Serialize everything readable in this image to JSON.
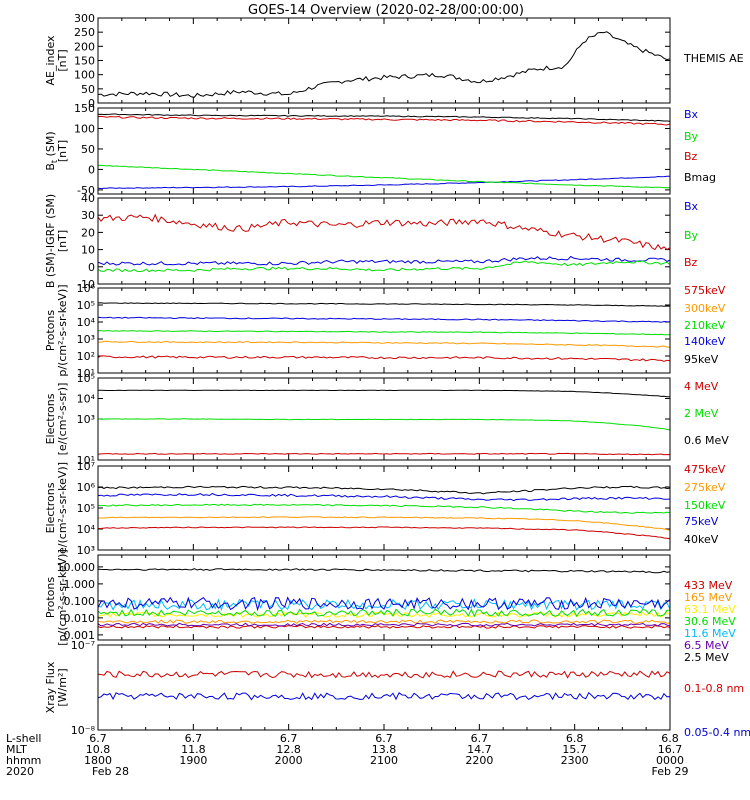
{
  "title": "GOES-14 Overview (2020-02-28/00:00:00)",
  "colors": {
    "black": "#000000",
    "red": "#cc0000",
    "green": "#00dd00",
    "blue": "#0000dd",
    "orange": "#ff9900",
    "yellow": "#ffee00",
    "cyan": "#00bbff",
    "purple": "#6600aa"
  },
  "x_axis": {
    "row_labels": [
      "L-shell",
      "MLT",
      "hhmm",
      "2020"
    ],
    "ticks": [
      {
        "lshell": "6.7",
        "mlt": "10.8",
        "hhmm": "1800",
        "date": "Feb 28"
      },
      {
        "lshell": "6.7",
        "mlt": "11.8",
        "hhmm": "1900",
        "date": ""
      },
      {
        "lshell": "6.7",
        "mlt": "12.8",
        "hhmm": "2000",
        "date": ""
      },
      {
        "lshell": "6.7",
        "mlt": "13.8",
        "hhmm": "2100",
        "date": ""
      },
      {
        "lshell": "6.7",
        "mlt": "14.7",
        "hhmm": "2200",
        "date": ""
      },
      {
        "lshell": "6.8",
        "mlt": "15.7",
        "hhmm": "2300",
        "date": ""
      },
      {
        "lshell": "6.8",
        "mlt": "16.7",
        "hhmm": "0000",
        "date": "Feb 29"
      }
    ]
  },
  "chart_data": [
    {
      "type": "line",
      "ylabel": [
        "AE_index",
        "[nT]"
      ],
      "scale": "linear",
      "ylim": [
        0,
        300
      ],
      "ticks": [
        {
          "v": 0,
          "label": "0"
        },
        {
          "v": 50,
          "label": "50"
        },
        {
          "v": 100,
          "label": "100"
        },
        {
          "v": 150,
          "label": "150"
        },
        {
          "v": 200,
          "label": "200"
        },
        {
          "v": 250,
          "label": "250"
        },
        {
          "v": 300,
          "label": "300"
        }
      ],
      "x": [
        18.0,
        18.5,
        19.0,
        19.5,
        20.0,
        20.3,
        20.6,
        21.0,
        21.3,
        21.6,
        22.0,
        22.3,
        22.6,
        22.9,
        23.1,
        23.3,
        23.6,
        24.0
      ],
      "series": [
        {
          "name": "THEMIS AE",
          "color": "black",
          "jitter": 8,
          "values": [
            30,
            35,
            25,
            40,
            30,
            60,
            80,
            90,
            95,
            100,
            75,
            95,
            120,
            130,
            220,
            250,
            200,
            150
          ]
        }
      ]
    },
    {
      "type": "line",
      "ylabel": [
        "B",
        "[nT]"
      ],
      "ylabel_sub": "t",
      "ylabel_suffix": " (SM)",
      "scale": "linear",
      "ylim": [
        -60,
        150
      ],
      "ticks": [
        {
          "v": -50,
          "label": "-50"
        },
        {
          "v": 0,
          "label": "0"
        },
        {
          "v": 50,
          "label": "50"
        },
        {
          "v": 100,
          "label": "100"
        },
        {
          "v": 150,
          "label": "150"
        }
      ],
      "x": [
        18,
        19,
        20,
        21,
        22,
        23,
        24
      ],
      "series": [
        {
          "name": "Bx",
          "color": "blue",
          "jitter": 1,
          "values": [
            -46,
            -44,
            -42,
            -38,
            -32,
            -25,
            -17
          ]
        },
        {
          "name": "By",
          "color": "green",
          "jitter": 1,
          "values": [
            10,
            0,
            -10,
            -20,
            -30,
            -38,
            -45
          ]
        },
        {
          "name": "Bz",
          "color": "red",
          "jitter": 2,
          "values": [
            128,
            125,
            124,
            122,
            120,
            116,
            110
          ]
        },
        {
          "name": "Bmag",
          "color": "black",
          "jitter": 1,
          "values": [
            135,
            132,
            131,
            130,
            128,
            124,
            118
          ]
        }
      ]
    },
    {
      "type": "line",
      "ylabel": [
        "B (SM)-IGRF (SM)",
        "[nT]"
      ],
      "scale": "linear",
      "ylim": [
        -10,
        40
      ],
      "ticks": [
        {
          "v": -10,
          "label": "-10"
        },
        {
          "v": 0,
          "label": "0"
        },
        {
          "v": 10,
          "label": "10"
        },
        {
          "v": 20,
          "label": "20"
        },
        {
          "v": 30,
          "label": "30"
        },
        {
          "v": 40,
          "label": "40"
        }
      ],
      "x": [
        18,
        18.5,
        19,
        19.5,
        20,
        20.5,
        21,
        21.5,
        22,
        22.5,
        23,
        23.5,
        24
      ],
      "series": [
        {
          "name": "Bx",
          "color": "blue",
          "jitter": 1,
          "values": [
            2,
            2,
            2,
            2,
            2,
            3,
            3,
            3,
            3,
            5,
            5,
            4,
            4
          ]
        },
        {
          "name": "By",
          "color": "green",
          "jitter": 0.8,
          "values": [
            -2,
            -2,
            -2,
            -1,
            -1,
            -1,
            -2,
            -1,
            -1,
            3,
            1,
            3,
            2
          ]
        },
        {
          "name": "Bz",
          "color": "red",
          "jitter": 2,
          "values": [
            28,
            29,
            25,
            22,
            26,
            24,
            26,
            25,
            27,
            22,
            18,
            15,
            10
          ]
        }
      ]
    },
    {
      "type": "line",
      "ylabel": [
        "Protons",
        "p/(cm²-s-sr-keV)]"
      ],
      "scale": "log",
      "ylim": [
        10,
        1000000
      ],
      "ticks": [
        {
          "v": 10,
          "label": "10¹"
        },
        {
          "v": 100,
          "label": "10²"
        },
        {
          "v": 1000,
          "label": "10³"
        },
        {
          "v": 10000,
          "label": "10⁴"
        },
        {
          "v": 100000,
          "label": "10⁵"
        },
        {
          "v": 1000000,
          "label": "10⁶"
        }
      ],
      "x": [
        18,
        19,
        20,
        21,
        22,
        23,
        24
      ],
      "series": [
        {
          "name": "575keV",
          "color": "red",
          "jitter": 0.06,
          "values": [
            90,
            85,
            85,
            80,
            80,
            70,
            55
          ]
        },
        {
          "name": "300keV",
          "color": "orange",
          "jitter": 0.03,
          "values": [
            700,
            650,
            650,
            600,
            550,
            450,
            350
          ]
        },
        {
          "name": "210keV",
          "color": "green",
          "jitter": 0.02,
          "values": [
            3000,
            2900,
            2800,
            2600,
            2500,
            2200,
            1800
          ]
        },
        {
          "name": "140keV",
          "color": "blue",
          "jitter": 0.03,
          "values": [
            18000,
            17000,
            16000,
            15000,
            14000,
            12000,
            10000
          ]
        },
        {
          "name": "95keV",
          "color": "black",
          "jitter": 0.02,
          "values": [
            130000,
            125000,
            120000,
            115000,
            110000,
            100000,
            85000
          ]
        }
      ]
    },
    {
      "type": "line",
      "ylabel": [
        "Electrons",
        "[e/(cm²-s-sr)]"
      ],
      "scale": "log",
      "ylim": [
        10,
        100000
      ],
      "ticks": [
        {
          "v": 10,
          "label": "10¹"
        },
        {
          "v": 1000,
          "label": "10³"
        },
        {
          "v": 10000,
          "label": "10⁴"
        },
        {
          "v": 100000,
          "label": "10⁵"
        }
      ],
      "x": [
        18,
        19,
        20,
        21,
        22,
        22.5,
        23,
        23.5,
        24
      ],
      "series": [
        {
          "name": "4 MeV",
          "color": "red",
          "jitter": 0.02,
          "values": [
            20,
            20,
            20,
            20,
            20,
            20,
            20,
            19,
            19
          ]
        },
        {
          "name": "2 MeV",
          "color": "green",
          "jitter": 0.01,
          "values": [
            1000,
            1000,
            950,
            950,
            950,
            900,
            800,
            550,
            300
          ]
        },
        {
          "name": "0.6 MeV",
          "color": "black",
          "jitter": 0.01,
          "values": [
            25000,
            25000,
            25000,
            25000,
            25000,
            24000,
            22000,
            17000,
            12000
          ]
        }
      ]
    },
    {
      "type": "line",
      "ylabel": [
        "Electrons",
        "e/(cm²-s-sr-keV)]"
      ],
      "scale": "log",
      "ylim": [
        1000,
        10000000
      ],
      "ticks": [
        {
          "v": 1000,
          "label": "10³"
        },
        {
          "v": 10000,
          "label": "10⁴"
        },
        {
          "v": 100000,
          "label": "10⁵"
        },
        {
          "v": 1000000,
          "label": "10⁶"
        },
        {
          "v": 10000000,
          "label": "10⁷"
        }
      ],
      "x": [
        18,
        19,
        20,
        21,
        22,
        22.5,
        23,
        23.5,
        24
      ],
      "series": [
        {
          "name": "475keV",
          "color": "red",
          "jitter": 0.02,
          "values": [
            11000,
            12000,
            12000,
            12000,
            11000,
            10000,
            9000,
            6000,
            3500
          ]
        },
        {
          "name": "275keV",
          "color": "orange",
          "jitter": 0.02,
          "values": [
            35000,
            36000,
            37000,
            36000,
            33000,
            30000,
            25000,
            16000,
            9000
          ]
        },
        {
          "name": "150keV",
          "color": "green",
          "jitter": 0.03,
          "values": [
            130000,
            140000,
            140000,
            130000,
            110000,
            90000,
            70000,
            60000,
            60000
          ]
        },
        {
          "name": "75keV",
          "color": "blue",
          "jitter": 0.05,
          "values": [
            400000,
            450000,
            400000,
            350000,
            250000,
            250000,
            280000,
            300000,
            280000
          ]
        },
        {
          "name": "40keV",
          "color": "black",
          "jitter": 0.04,
          "values": [
            900000,
            1000000,
            950000,
            800000,
            500000,
            650000,
            900000,
            1000000,
            900000
          ]
        }
      ]
    },
    {
      "type": "line",
      "ylabel": [
        "Protons",
        "[p/(cm²-s-sr-keV)]"
      ],
      "scale": "log",
      "ylim": [
        0.0005,
        50
      ],
      "ticks": [
        {
          "v": 0.001,
          "label": "0.001"
        },
        {
          "v": 0.01,
          "label": "0.010"
        },
        {
          "v": 0.1,
          "label": "0.100"
        },
        {
          "v": 1,
          "label": "1.000"
        },
        {
          "v": 10,
          "label": "10.000"
        }
      ],
      "x": [
        18,
        20,
        22,
        24
      ],
      "series": [
        {
          "name": "433 MeV",
          "color": "red",
          "jitter": 0.08,
          "values": [
            0.003,
            0.003,
            0.003,
            0.003
          ]
        },
        {
          "name": "165 MeV",
          "color": "orange",
          "jitter": 0.1,
          "values": [
            0.006,
            0.006,
            0.006,
            0.006
          ]
        },
        {
          "name": "63.1 MeV",
          "color": "yellow",
          "jitter": 0.15,
          "values": [
            0.015,
            0.015,
            0.015,
            0.015
          ]
        },
        {
          "name": "30.6 MeV",
          "color": "green",
          "jitter": 0.2,
          "values": [
            0.02,
            0.02,
            0.02,
            0.02
          ]
        },
        {
          "name": "11.6 MeV",
          "color": "cyan",
          "jitter": 0.3,
          "values": [
            0.06,
            0.06,
            0.06,
            0.06
          ]
        },
        {
          "name": "6.5 MeV",
          "color": "purple",
          "jitter": 0.08,
          "values": [
            0.004,
            0.004,
            0.004,
            0.004
          ]
        },
        {
          "name": "2.5 MeV",
          "color": "black",
          "jitter": 0.05,
          "values": [
            7,
            7,
            6,
            5
          ]
        }
      ],
      "extra_series": {
        "color": "blue",
        "jitter": 0.35,
        "values": [
          0.07,
          0.07,
          0.07,
          0.07
        ]
      }
    },
    {
      "type": "line",
      "ylabel": [
        "Xray Flux",
        "[W/m²]"
      ],
      "scale": "log",
      "ylim": [
        1e-08,
        1e-07
      ],
      "ticks": [
        {
          "v": 1e-08,
          "label": "10⁻⁸"
        },
        {
          "v": 1e-07,
          "label": "10⁻⁷"
        }
      ],
      "x": [
        18,
        24
      ],
      "series": [
        {
          "name": "0.1-0.8 nm",
          "color": "red",
          "jitter": 0.04,
          "values": [
            4.5e-08,
            4.5e-08
          ]
        },
        {
          "name": "0.05-0.4 nm",
          "color": "blue",
          "jitter": 0.04,
          "values": [
            2.5e-08,
            2.5e-08
          ]
        }
      ]
    }
  ]
}
